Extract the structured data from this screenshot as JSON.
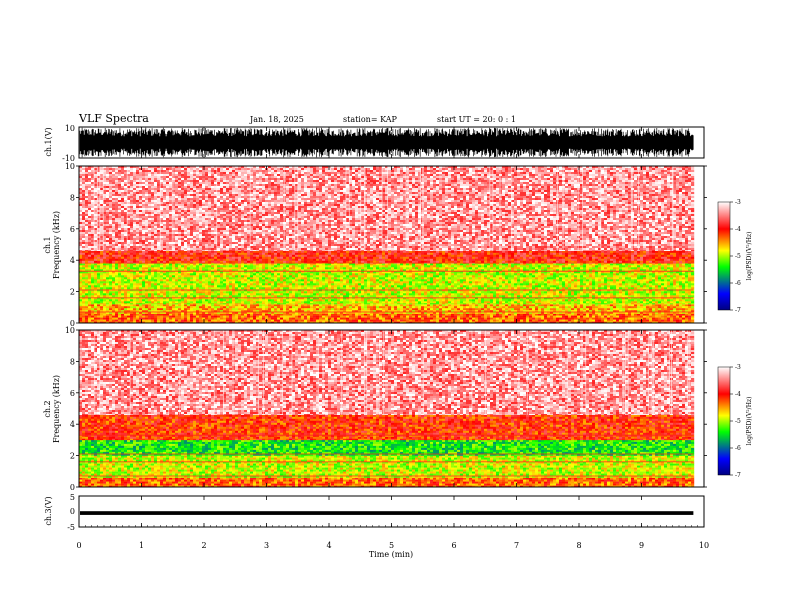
{
  "header": {
    "title": "VLF Spectra",
    "date": "Jan. 18, 2025",
    "station": "station= KAP",
    "start": "start  UT =   20: 0  : 1"
  },
  "chart_data": [
    {
      "type": "line",
      "panel": "ch1-waveform",
      "ylabel": "ch.1(V)",
      "ylim": [
        -10,
        10
      ],
      "yticks": [
        "10",
        "-10"
      ],
      "x_range_min": [
        0,
        9.83
      ],
      "description_values": "dense oscillating waveform, amplitude roughly ±9 V"
    },
    {
      "type": "heatmap",
      "panel": "ch1-spectrogram",
      "ylabel": "ch.1",
      "ylabel2": "Frequency (kHz)",
      "ylim": [
        0,
        10
      ],
      "yticks": [
        "0",
        "2",
        "4",
        "6",
        "8",
        "10"
      ],
      "x_range_min": [
        0,
        9.83
      ],
      "bands": [
        {
          "f_lo": 0,
          "f_hi": 0.6,
          "level": -4.3
        },
        {
          "f_lo": 0.6,
          "f_hi": 1.2,
          "level": -4.6
        },
        {
          "f_lo": 1.2,
          "f_hi": 3.8,
          "level": -4.9
        },
        {
          "f_lo": 3.8,
          "f_hi": 4.6,
          "level": -4.0
        },
        {
          "f_lo": 4.6,
          "f_hi": 10,
          "level": -3.4
        }
      ],
      "colorbar": {
        "label": "log(PSD)(V²/Hz)",
        "ticks": [
          "-3",
          "-4",
          "-5",
          "-6",
          "-7"
        ],
        "range": [
          -7,
          -3
        ]
      }
    },
    {
      "type": "heatmap",
      "panel": "ch2-spectrogram",
      "ylabel": "ch.2",
      "ylabel2": "Frequency (kHz)",
      "ylim": [
        0,
        10
      ],
      "yticks": [
        "0",
        "2",
        "4",
        "6",
        "8",
        "10"
      ],
      "x_range_min": [
        0,
        9.83
      ],
      "bands": [
        {
          "f_lo": 0,
          "f_hi": 0.6,
          "level": -4.3
        },
        {
          "f_lo": 0.6,
          "f_hi": 2.0,
          "level": -4.9
        },
        {
          "f_lo": 2.0,
          "f_hi": 3.0,
          "level": -5.4
        },
        {
          "f_lo": 3.0,
          "f_hi": 4.6,
          "level": -4.1
        },
        {
          "f_lo": 4.6,
          "f_hi": 10,
          "level": -3.4
        }
      ],
      "colorbar": {
        "label": "log(PSD)(V²/Hz)",
        "ticks": [
          "-3",
          "-4",
          "-5",
          "-6",
          "-7"
        ],
        "range": [
          -7,
          -3
        ]
      }
    },
    {
      "type": "line",
      "panel": "ch3-waveform",
      "ylabel": "ch.3(V)",
      "ylim": [
        -5,
        5
      ],
      "yticks": [
        "5",
        "0",
        "-5"
      ],
      "x_range_min": [
        0,
        9.83
      ],
      "description_values": "near-constant signal around -0.5 V with small ripple"
    }
  ],
  "xaxis": {
    "label": "Time (min)",
    "ticks": [
      "0",
      "1",
      "2",
      "3",
      "4",
      "5",
      "6",
      "7",
      "8",
      "9",
      "10"
    ],
    "xlim": [
      0,
      10
    ]
  },
  "colors": {
    "low": "#00008b",
    "mid_low": "#0000ff",
    "mid": "#00ff00",
    "mid_high": "#ffff00",
    "high": "#ff0000",
    "top": "#ffffff"
  }
}
